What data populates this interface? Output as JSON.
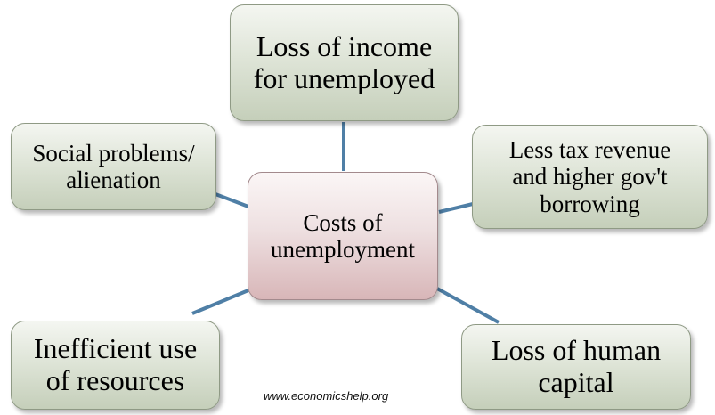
{
  "diagram": {
    "center": {
      "line1": "Costs of",
      "line2": "unemployment"
    },
    "nodes": {
      "top": {
        "line1": "Loss of income",
        "line2": "for unemployed"
      },
      "left": {
        "line1": "Social problems/",
        "line2": "alienation"
      },
      "right": {
        "line1": "Less tax revenue",
        "line2": "and higher gov't",
        "line3": "borrowing"
      },
      "bottom_left": {
        "line1": "Inefficient use",
        "line2": "of resources"
      },
      "bottom_right": {
        "line1": "Loss of human",
        "line2": "capital"
      }
    },
    "watermark": "www.economicshelp.org"
  },
  "colors": {
    "connector": "#4f7fa6",
    "outer_node_fill": "#dfe5d8",
    "center_node_fill": "#eee0e1"
  }
}
